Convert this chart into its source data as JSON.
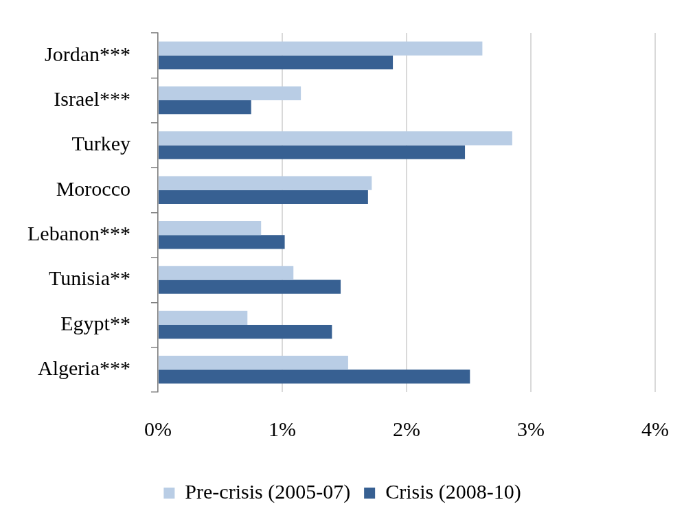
{
  "chart_data": {
    "type": "bar",
    "orientation": "horizontal",
    "categories": [
      "Jordan***",
      "Israel***",
      "Turkey",
      "Morocco",
      "Lebanon***",
      "Tunisia**",
      "Egypt**",
      "Algeria***"
    ],
    "series": [
      {
        "name": "Pre-crisis (2005-07)",
        "color": "#b9cde5",
        "values": [
          2.61,
          1.15,
          2.85,
          1.72,
          0.83,
          1.09,
          0.72,
          1.53
        ]
      },
      {
        "name": "Crisis (2008-10)",
        "color": "#376092",
        "values": [
          1.89,
          0.75,
          2.47,
          1.69,
          1.02,
          1.47,
          1.4,
          2.51
        ]
      }
    ],
    "xlim": [
      0,
      4
    ],
    "xticks": [
      {
        "value": 0,
        "label": "0%"
      },
      {
        "value": 1,
        "label": "1%"
      },
      {
        "value": 2,
        "label": "2%"
      },
      {
        "value": 3,
        "label": "3%"
      },
      {
        "value": 4,
        "label": "4%"
      }
    ],
    "grid": "x",
    "legend": "bottom"
  }
}
